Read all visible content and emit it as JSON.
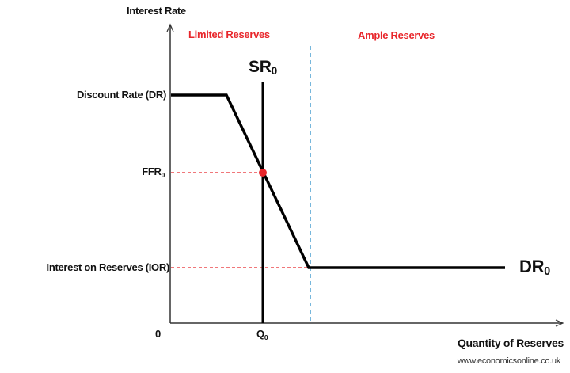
{
  "axes": {
    "y_label": "Interest Rate",
    "x_label": "Quantity of Reserves",
    "origin": "0"
  },
  "regions": {
    "limited": "Limited Reserves",
    "ample": "Ample Reserves"
  },
  "curves": {
    "supply": {
      "base": "SR",
      "sub": "0"
    },
    "demand": {
      "base": "DR",
      "sub": "0"
    }
  },
  "y_levels": {
    "discount_rate": "Discount Rate (DR)",
    "ffr": {
      "base": "FFR",
      "sub": "0"
    },
    "ior": "Interest on Reserves (IOR)"
  },
  "x_levels": {
    "q": {
      "base": "Q",
      "sub": "0"
    }
  },
  "colors": {
    "curve": "#000000",
    "accent": "#e8262b",
    "boundary": "#4a9fd0"
  },
  "credit": "www.economicsonline.co.uk"
}
